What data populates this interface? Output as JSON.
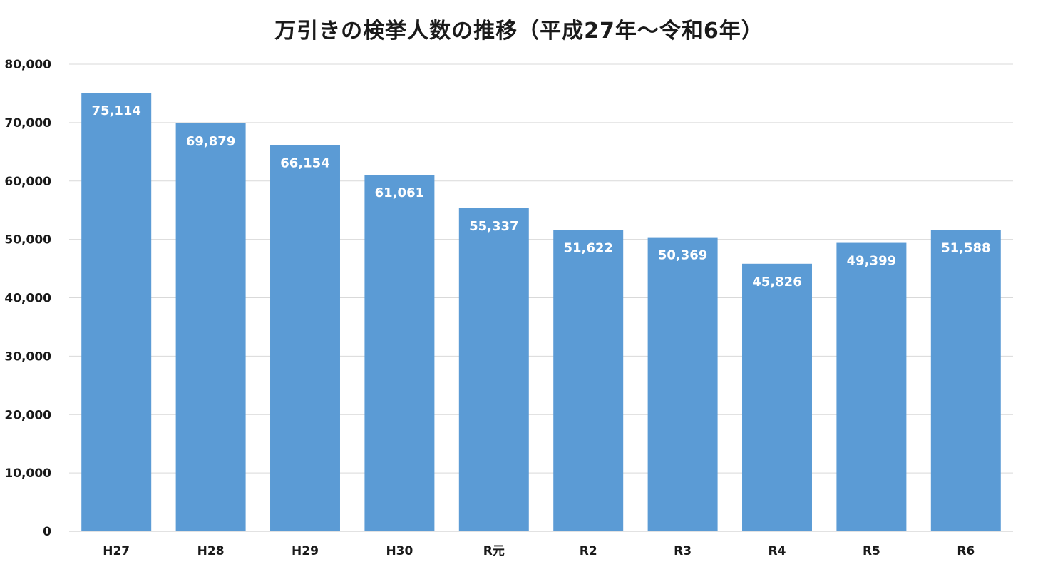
{
  "chart_data": {
    "type": "bar",
    "title": "万引きの検挙人数の推移（平成27年～令和6年）",
    "categories": [
      "H27",
      "H28",
      "H29",
      "H30",
      "R元",
      "R2",
      "R3",
      "R4",
      "R5",
      "R6"
    ],
    "values": [
      75114,
      69879,
      66154,
      61061,
      55337,
      51622,
      50369,
      45826,
      49399,
      51588
    ],
    "value_labels": [
      "75,114",
      "69,879",
      "66,154",
      "61,061",
      "55,337",
      "51,622",
      "50,369",
      "45,826",
      "49,399",
      "51,588"
    ],
    "ylim": [
      0,
      80000
    ],
    "yticks": [
      0,
      10000,
      20000,
      30000,
      40000,
      50000,
      60000,
      70000,
      80000
    ],
    "ytick_labels": [
      "0",
      "10,000",
      "20,000",
      "30,000",
      "40,000",
      "50,000",
      "60,000",
      "70,000",
      "80,000"
    ],
    "xlabel": "",
    "ylabel": "",
    "grid": true,
    "legend": "none",
    "bar_color": "#5b9bd5",
    "grid_color": "#d9d9d9"
  }
}
